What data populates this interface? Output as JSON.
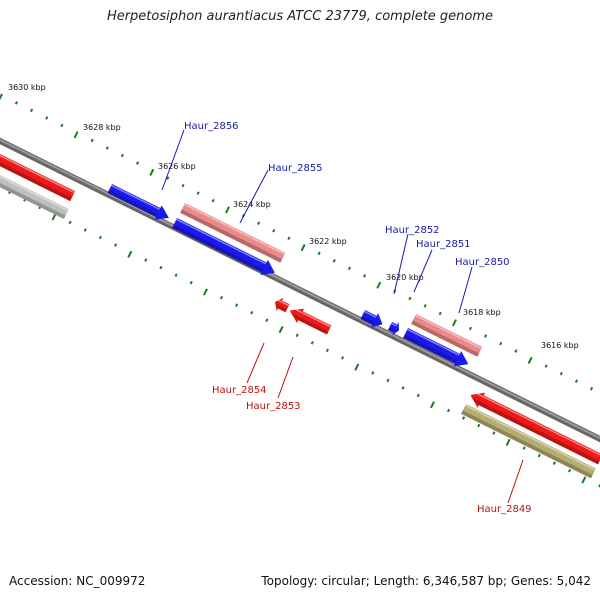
{
  "title": "Herpetosiphon aurantiacus ATCC 23779, complete genome",
  "footer": {
    "accession": "Accession: NC_009972",
    "summary": "Topology: circular; Length: 6,346,587 bp; Genes: 5,042"
  },
  "colors": {
    "backbone": "#7a7a7a",
    "ticks": "#1f7a1f",
    "gene_blue": "#1a1aee",
    "gene_red": "#ee1a1a",
    "gene_pink": "#ea8a8a",
    "gene_gray": "#bfbfbf",
    "gene_olive": "#b5ae70",
    "label_blue": "#1a1aaa",
    "label_red": "#bb1111"
  },
  "scale_labels": [
    "3630 kbp",
    "3628 kbp",
    "3626 kbp",
    "3624 kbp",
    "3622 kbp",
    "3620 kbp",
    "3618 kbp",
    "3616 kbp"
  ],
  "gene_labels": [
    "Haur_2856",
    "Haur_2855",
    "Haur_2852",
    "Haur_2851",
    "Haur_2850",
    "Haur_2854",
    "Haur_2853",
    "Haur_2849"
  ]
}
